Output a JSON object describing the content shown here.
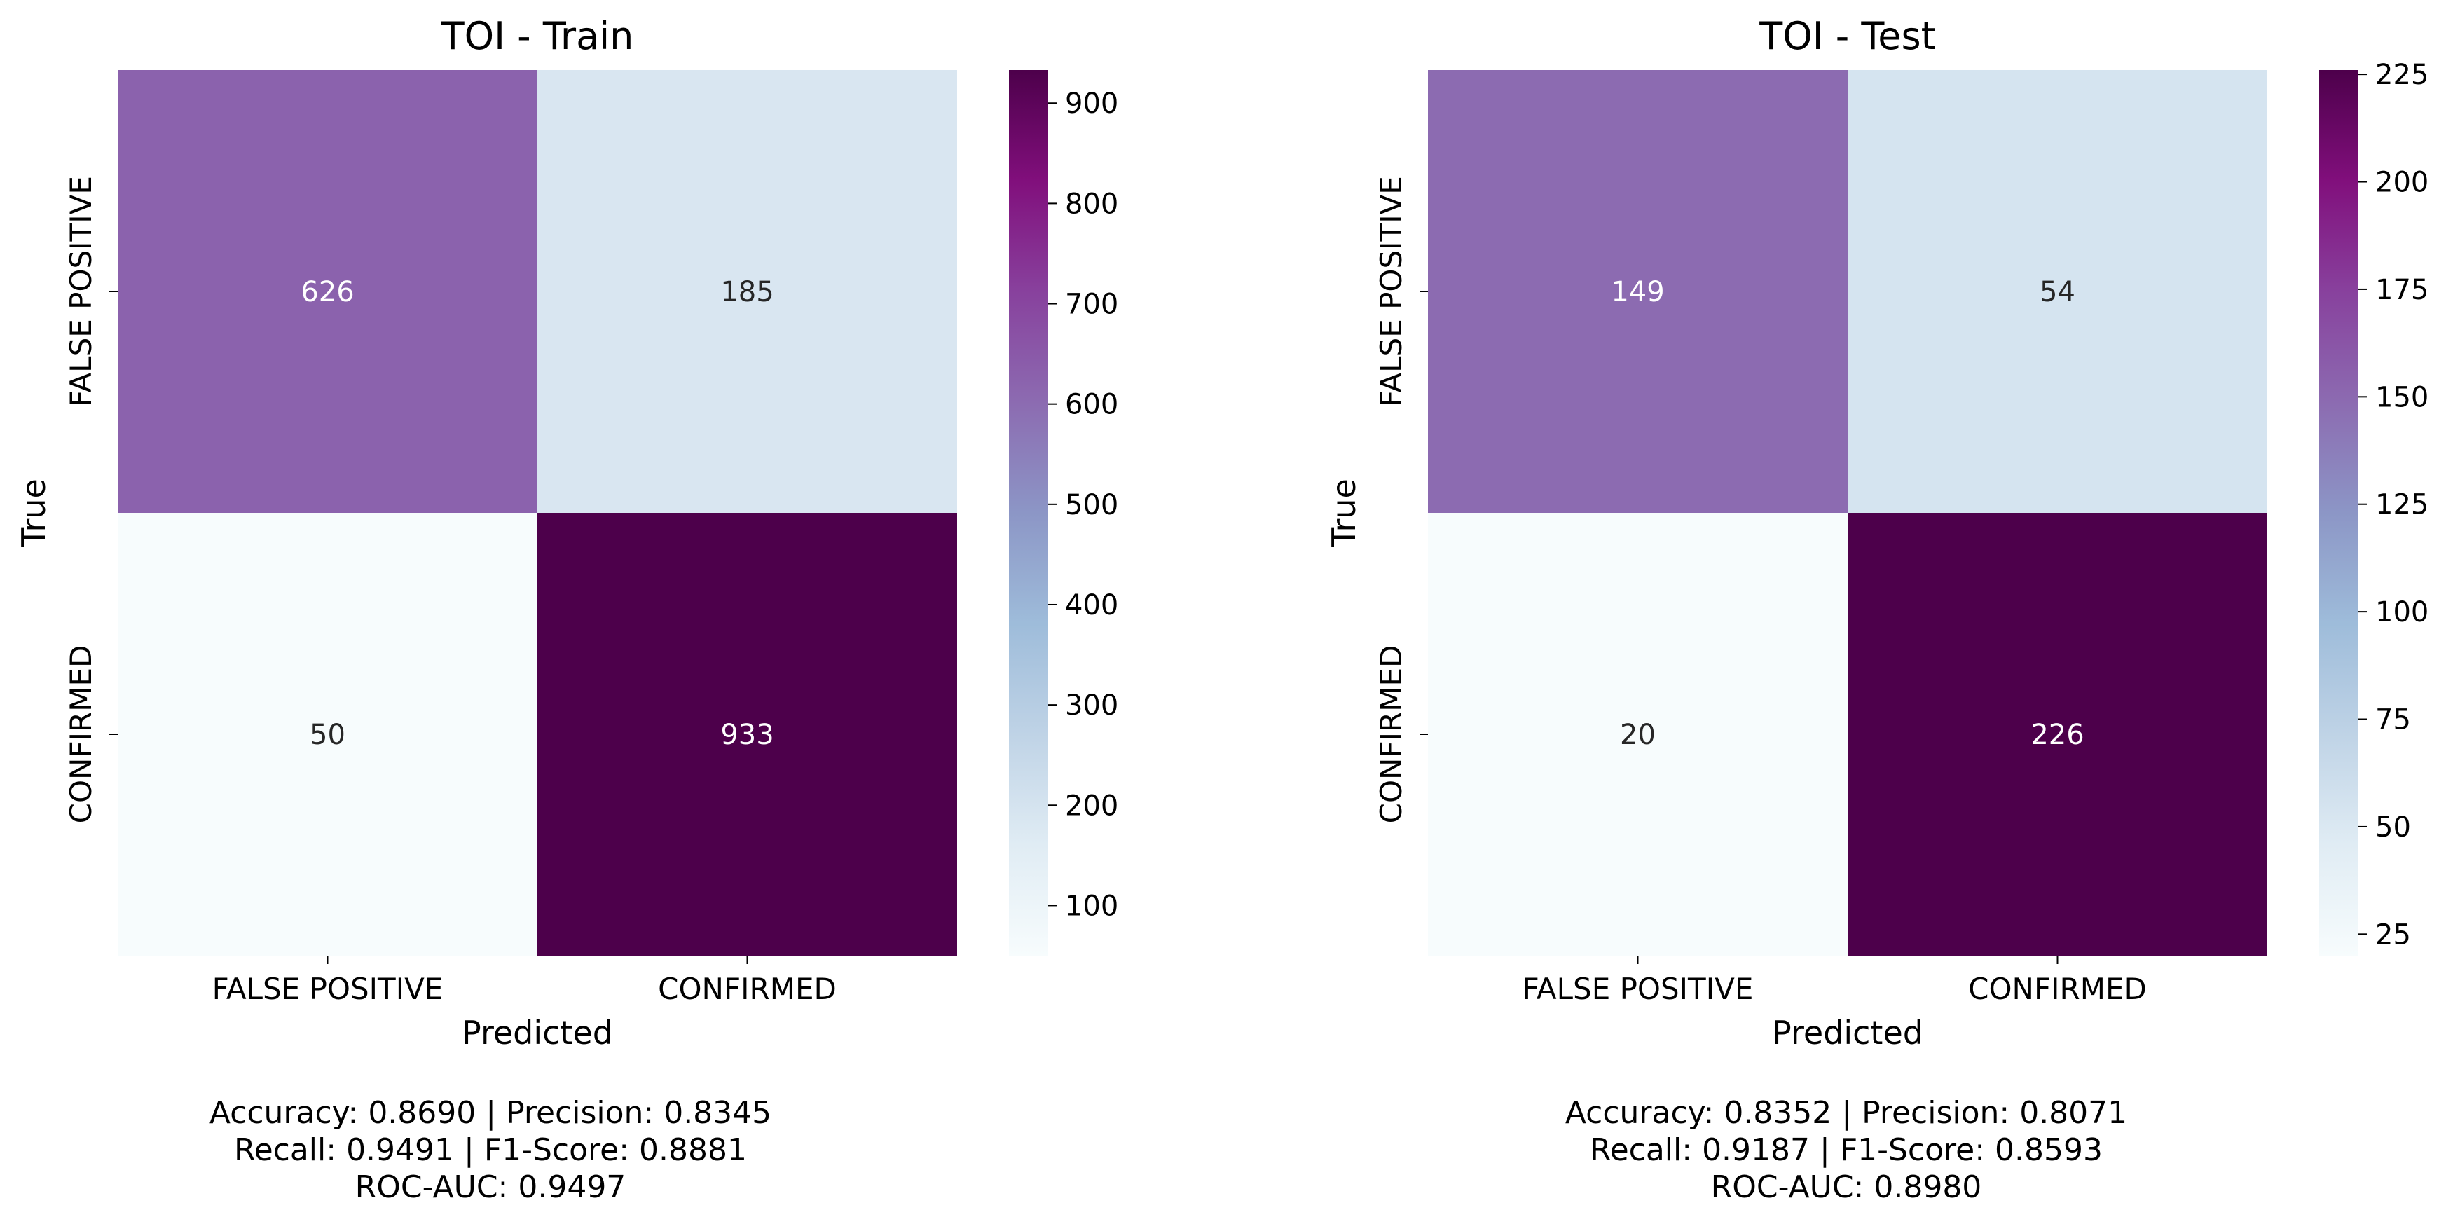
{
  "chart_data": [
    {
      "type": "heatmap",
      "title": "TOI - Train",
      "xlabel": "Predicted",
      "ylabel": "True",
      "x_categories": [
        "FALSE POSITIVE",
        "CONFIRMED"
      ],
      "y_categories": [
        "FALSE POSITIVE",
        "CONFIRMED"
      ],
      "matrix": [
        [
          626,
          185
        ],
        [
          50,
          933
        ]
      ],
      "colormap": "BuPu",
      "colorbar": {
        "min": 50,
        "max": 933,
        "ticks": [
          100,
          200,
          300,
          400,
          500,
          600,
          700,
          800,
          900
        ]
      },
      "metrics": [
        "Accuracy: 0.8690 | Precision: 0.8345",
        "Recall: 0.9491 | F1-Score: 0.8881",
        "ROC-AUC: 0.9497"
      ]
    },
    {
      "type": "heatmap",
      "title": "TOI - Test",
      "xlabel": "Predicted",
      "ylabel": "True",
      "x_categories": [
        "FALSE POSITIVE",
        "CONFIRMED"
      ],
      "y_categories": [
        "FALSE POSITIVE",
        "CONFIRMED"
      ],
      "matrix": [
        [
          149,
          54
        ],
        [
          20,
          226
        ]
      ],
      "colormap": "BuPu",
      "colorbar": {
        "min": 20,
        "max": 226,
        "ticks": [
          25,
          50,
          75,
          100,
          125,
          150,
          175,
          200,
          225
        ]
      },
      "metrics": [
        "Accuracy: 0.8352 | Precision: 0.8071",
        "Recall: 0.9187 | F1-Score: 0.8593",
        "ROC-AUC: 0.8980"
      ]
    }
  ],
  "colors": {
    "bupu_stops": [
      "#f7fcfd",
      "#e0ecf4",
      "#bfd3e6",
      "#9ebcda",
      "#8c96c6",
      "#8c6bb1",
      "#88419d",
      "#810f7c",
      "#4d004b"
    ],
    "text_dark": "#262626",
    "text_light": "#ffffff"
  }
}
